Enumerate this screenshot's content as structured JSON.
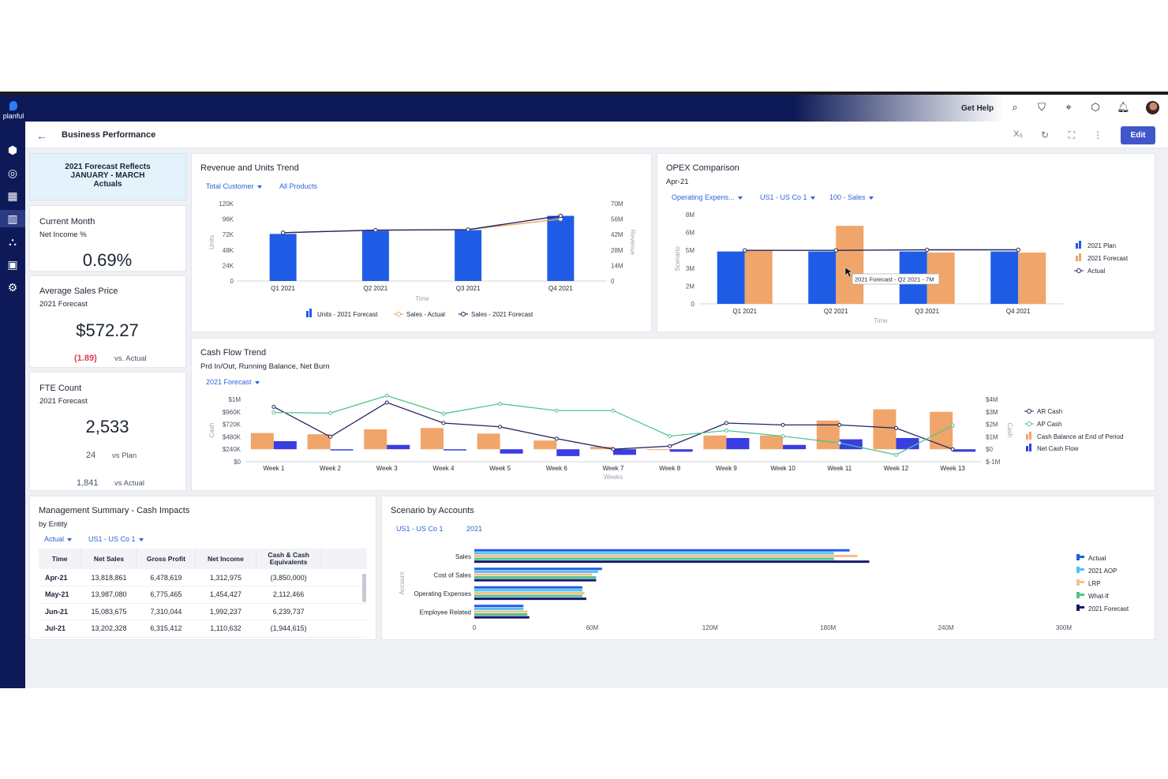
{
  "app": {
    "logo_text": "planful",
    "page_title": "Business Performance",
    "edit_label": "Edit",
    "get_help": "Get Help",
    "xs_label": "X₅"
  },
  "sidebar": [
    "cube-icon",
    "target-icon",
    "grid-icon",
    "dashboard-icon",
    "hierarchy-icon",
    "clipboard-icon",
    "gear-icon"
  ],
  "banner": {
    "line1": "2021 Forecast Reflects",
    "line2": "JANUARY - MARCH",
    "line3": "Actuals"
  },
  "kpis": {
    "current_month": {
      "title": "Current Month",
      "sub": "Net Income %",
      "value": "0.69%"
    },
    "avg_price": {
      "title": "Average Sales Price",
      "sub": "2021 Forecast",
      "value": "$572.27",
      "delta": "(1.89)",
      "delta_label": "vs. Actual"
    },
    "fte": {
      "title": "FTE Count",
      "sub": "2021 Forecast",
      "value": "2,533",
      "vs_plan_value": "24",
      "vs_plan_label": "vs Plan",
      "vs_actual_value": "1,841",
      "vs_actual_label": "vs Actual"
    }
  },
  "revenue_chart": {
    "title": "Revenue and Units Trend",
    "filters": [
      "Total Customer",
      "All Products"
    ],
    "chart_data": {
      "type": "bar",
      "categories": [
        "Q1 2021",
        "Q2 2021",
        "Q3 2021",
        "Q4 2021"
      ],
      "xlabel": "Time",
      "ylabel": "Units",
      "y2label": "Revenue",
      "ylim": [
        0,
        120000
      ],
      "y2lim": [
        0,
        70000000
      ],
      "yticks": [
        "0",
        "24K",
        "48K",
        "72K",
        "96K",
        "120K"
      ],
      "y2ticks": [
        "0",
        "14M",
        "28M",
        "42M",
        "56M",
        "70M"
      ],
      "series": [
        {
          "name": "Units - 2021 Forecast",
          "kind": "bar",
          "axis": "left",
          "values": [
            73000,
            78000,
            79000,
            101000
          ]
        },
        {
          "name": "Sales - Actual",
          "kind": "line",
          "axis": "right",
          "values": [
            43700,
            46000,
            46500,
            56000
          ]
        },
        {
          "name": "Sales - 2021 Forecast",
          "kind": "line",
          "axis": "right",
          "values": [
            43700,
            46000,
            46500,
            59000
          ]
        }
      ]
    },
    "colors": {
      "bar": "#1f5ce6",
      "actual": "#f0a35e",
      "forecast": "#22255e"
    }
  },
  "opex_chart": {
    "title": "OPEX Comparison",
    "subtitle": "Apr-21",
    "filters": [
      "Operating Expens...",
      "US1 - US Co 1",
      "100 - Sales"
    ],
    "tooltip": "2021 Forecast - Q2 2021 - 7M",
    "chart_data": {
      "type": "bar",
      "categories": [
        "Q1 2021",
        "Q2 2021",
        "Q3 2021",
        "Q4 2021"
      ],
      "xlabel": "Time",
      "ylabel": "Scenario",
      "ylim": [
        0,
        8000000
      ],
      "yticks": [
        "0",
        "2M",
        "3M",
        "5M",
        "6M",
        "8M"
      ],
      "series": [
        {
          "name": "2021 Plan",
          "kind": "bar",
          "values": [
            4700000,
            4700000,
            4700000,
            4700000
          ]
        },
        {
          "name": "2021 Forecast",
          "kind": "bar",
          "values": [
            4800000,
            7000000,
            4600000,
            4600000
          ]
        },
        {
          "name": "Actual",
          "kind": "line",
          "values": [
            4800000,
            4800000,
            4850000,
            4850000
          ]
        }
      ]
    },
    "colors": {
      "plan": "#1f5ce6",
      "forecast": "#f0a56a",
      "actual": "#22255e"
    }
  },
  "cash_chart": {
    "title": "Cash Flow Trend",
    "subtitle": "Prd In/Out, Running Balance, Net Burn",
    "filters": [
      "2021 Forecast"
    ],
    "chart_data": {
      "type": "bar",
      "categories": [
        "Week 1",
        "Week 2",
        "Week 3",
        "Week 4",
        "Week 5",
        "Week 6",
        "Week 7",
        "Week 8",
        "Week 9",
        "Week 10",
        "Week 11",
        "Week 12",
        "Week 13"
      ],
      "xlabel": "Weeks",
      "ylabel": "Cash",
      "y2label": "Cash",
      "ylim": [
        0,
        1000000
      ],
      "y2lim": [
        -1000000,
        4000000
      ],
      "yticks": [
        "$0",
        "$240K",
        "$480K",
        "$720K",
        "$960K",
        "$1M"
      ],
      "y2ticks": [
        "$-1M",
        "$0",
        "$1M",
        "$2M",
        "$3M",
        "$4M"
      ],
      "series": [
        {
          "name": "AR Cash",
          "kind": "line",
          "axis": "left",
          "values": [
            880000,
            400000,
            950000,
            620000,
            560000,
            370000,
            200000,
            250000,
            620000,
            590000,
            590000,
            540000,
            200000
          ]
        },
        {
          "name": "AP Cash",
          "kind": "line",
          "axis": "left",
          "values": [
            790000,
            780000,
            1060000,
            770000,
            930000,
            820000,
            820000,
            410000,
            500000,
            410000,
            300000,
            110000,
            580000
          ]
        },
        {
          "name": "Cash Balance at End of Period",
          "kind": "bar",
          "axis": "right",
          "values": [
            1300000,
            1200000,
            1600000,
            1700000,
            1250000,
            700000,
            200000,
            0,
            1100000,
            1100000,
            2300000,
            3200000,
            3000000
          ]
        },
        {
          "name": "Net Cash Flow",
          "kind": "bar",
          "axis": "right",
          "values": [
            650000,
            -50000,
            350000,
            -60000,
            -350000,
            -550000,
            -450000,
            -200000,
            900000,
            350000,
            800000,
            900000,
            -200000
          ]
        }
      ]
    },
    "colors": {
      "ar": "#22255e",
      "ap": "#4fc48f",
      "balance": "#f0a56a",
      "net": "#3a3ee0"
    }
  },
  "mgmt": {
    "title": "Management Summary - Cash Impacts",
    "subtitle": "by Entity",
    "filters": [
      "Actual",
      "US1 - US Co 1"
    ],
    "columns": [
      "Time",
      "Net Sales",
      "Gross Profit",
      "Net Income",
      "Cash & Cash Equivalents"
    ],
    "rows": [
      [
        "Apr-21",
        "13,818,861",
        "6,478,619",
        "1,312,975",
        "(3,850,000)"
      ],
      [
        "May-21",
        "13,987,080",
        "6,775,465",
        "1,454,427",
        "2,112,466"
      ],
      [
        "Jun-21",
        "15,083,675",
        "7,310,044",
        "1,992,237",
        "6,239,737"
      ],
      [
        "Jul-21",
        "13,202,328",
        "6,315,412",
        "1,110,632",
        "(1,944,615)"
      ]
    ]
  },
  "scenario_chart": {
    "title": "Scenario by Accounts",
    "filters": [
      "US1 - US Co 1",
      "2021"
    ],
    "chart_data": {
      "type": "bar",
      "orientation": "horizontal",
      "categories": [
        "Sales",
        "Cost of Sales",
        "Operating Expenses",
        "Employee Related"
      ],
      "ylabel": "Account",
      "xlim": [
        0,
        300000000
      ],
      "xticks": [
        "0",
        "60M",
        "120M",
        "180M",
        "240M",
        "300M"
      ],
      "series": [
        {
          "name": "Actual",
          "values": [
            191000000,
            65000000,
            55000000,
            25000000
          ]
        },
        {
          "name": "2021 AOP",
          "values": [
            183000000,
            63000000,
            55000000,
            25000000
          ]
        },
        {
          "name": "LRP",
          "values": [
            195000000,
            60000000,
            56000000,
            27000000
          ]
        },
        {
          "name": "What-If",
          "values": [
            183000000,
            62000000,
            55000000,
            27000000
          ]
        },
        {
          "name": "2021 Forecast",
          "values": [
            201000000,
            62000000,
            57000000,
            28000000
          ]
        }
      ]
    },
    "colors": [
      "#1f5ce6",
      "#4fc3f7",
      "#f6c08a",
      "#4fc48f",
      "#16186b"
    ]
  }
}
